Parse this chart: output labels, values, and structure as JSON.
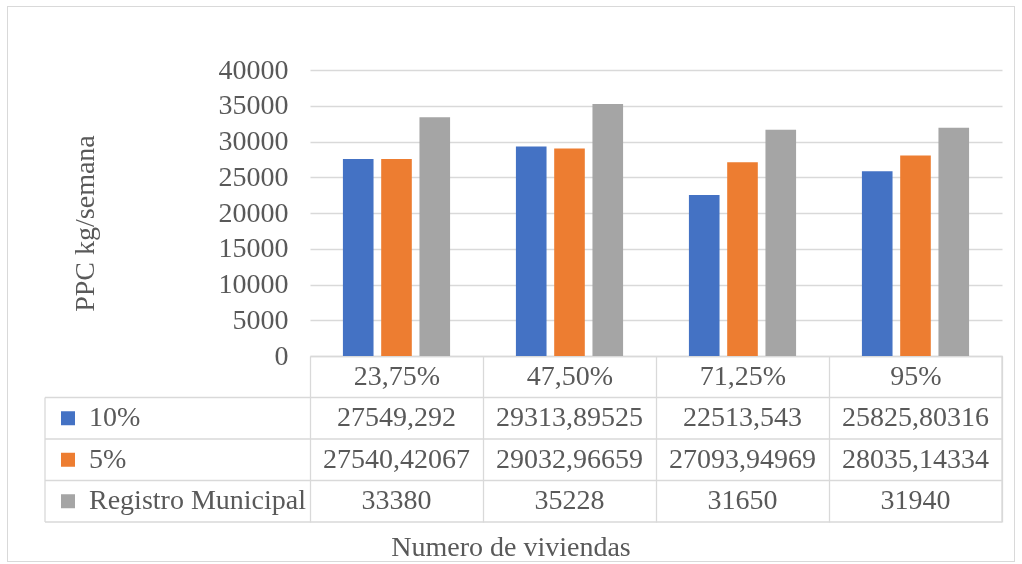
{
  "chart_data": {
    "type": "bar",
    "ylabel": "PPC kg/semana",
    "categories": [
      "23,75%",
      "47,50%",
      "71,25%",
      "95%"
    ],
    "series": [
      {
        "name": "10%",
        "color": "#4472c4",
        "values": [
          27549.292,
          29313.89525,
          22513.543,
          25825.80316
        ],
        "value_labels": [
          "27549,292",
          "29313,89525",
          "22513,543",
          "25825,80316"
        ]
      },
      {
        "name": "5%",
        "color": "#ed7d31",
        "values": [
          27540.42067,
          29032.96659,
          27093.94969,
          28035.14334
        ],
        "value_labels": [
          "27540,42067",
          "29032,96659",
          "27093,94969",
          "28035,14334"
        ]
      },
      {
        "name": "Registro Municipal",
        "color": "#a5a5a5",
        "values": [
          33380,
          35228,
          31650,
          31940
        ],
        "value_labels": [
          "33380",
          "35228",
          "31650",
          "31940"
        ]
      }
    ],
    "ylim": [
      0,
      40000
    ],
    "yticks": [
      0,
      5000,
      10000,
      15000,
      20000,
      25000,
      30000,
      35000,
      40000
    ],
    "grid": "y",
    "legend": "bottom left",
    "annotations": [
      "Numero de viviendas"
    ]
  }
}
